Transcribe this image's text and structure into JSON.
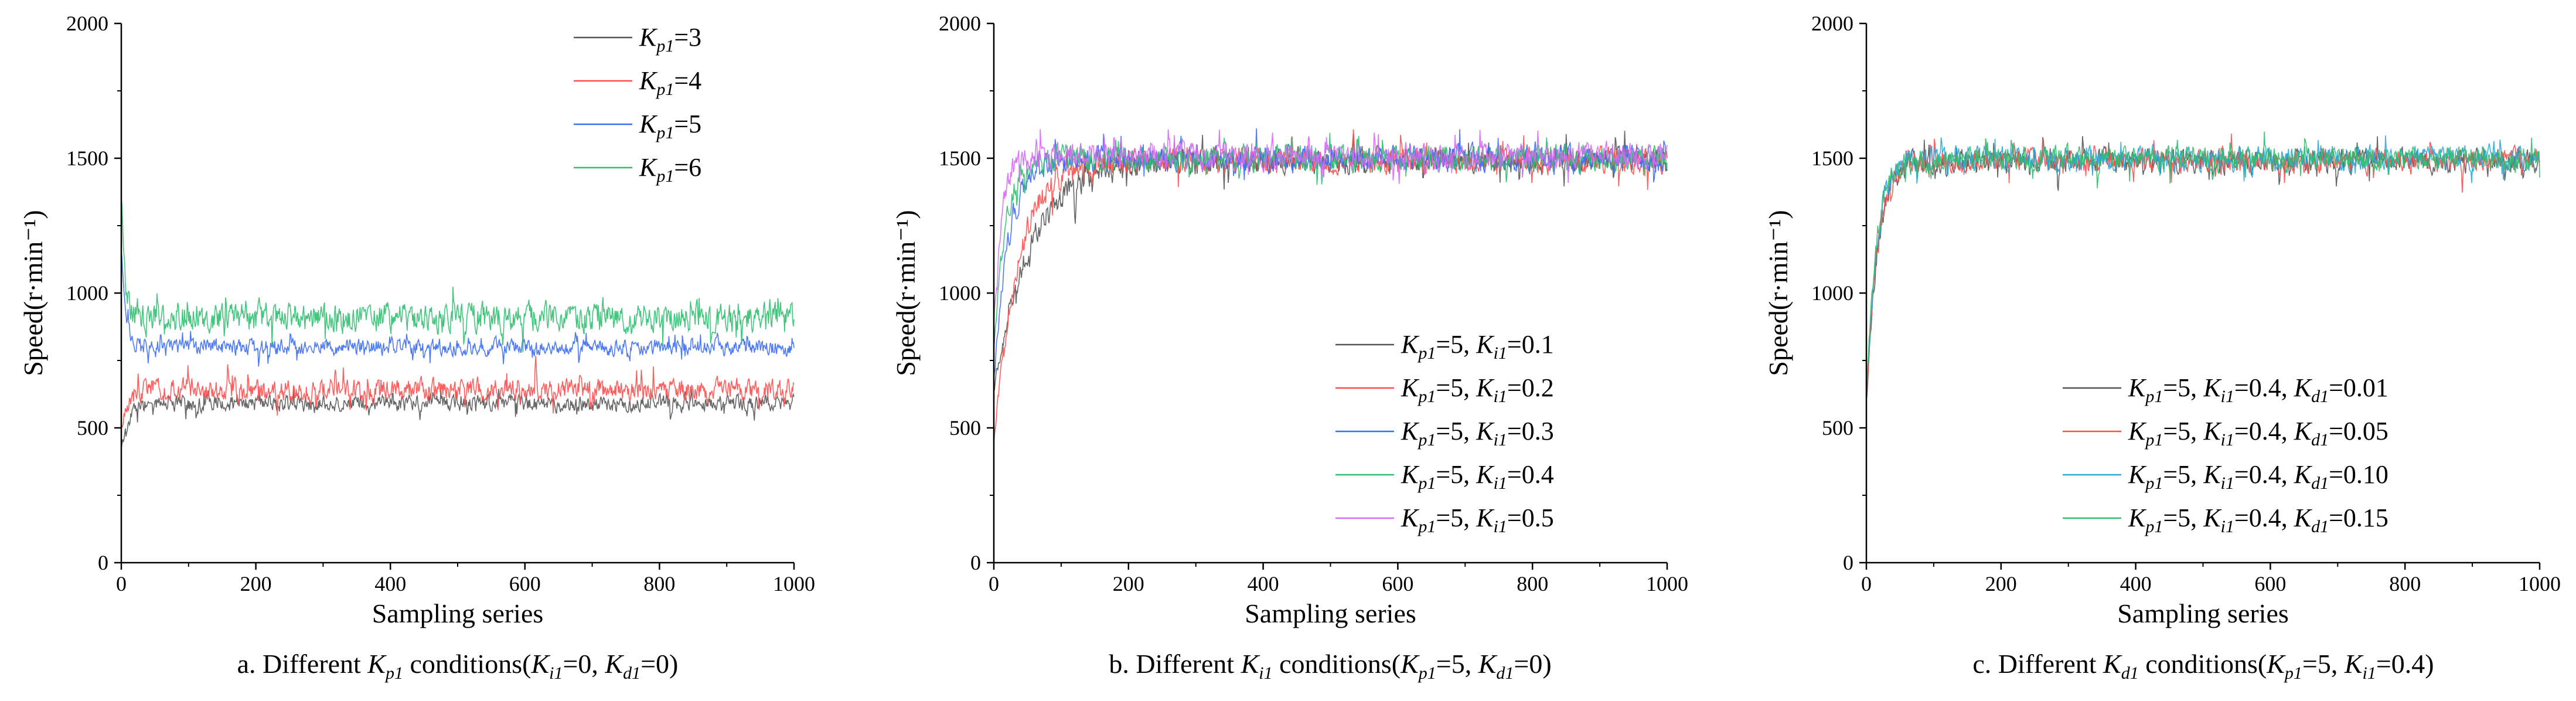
{
  "figure": {
    "panels": [
      {
        "id": "a",
        "caption": {
          "prefix": "a. Different ",
          "k": "K",
          "kSub": "p1",
          "mid": " conditions(",
          "p1": "K",
          "p1Sub": "i1",
          "p1Val": "=0, ",
          "p2": "K",
          "p2Sub": "d1",
          "p2Val": "=0)"
        },
        "legendPos": "top-right"
      },
      {
        "id": "b",
        "caption": {
          "prefix": "b. Different ",
          "k": "K",
          "kSub": "i1",
          "mid": " conditions(",
          "p1": "K",
          "p1Sub": "p1",
          "p1Val": "=5, ",
          "p2": "K",
          "p2Sub": "d1",
          "p2Val": "=0)"
        },
        "legendPos": "bottom-right"
      },
      {
        "id": "c",
        "caption": {
          "prefix": "c. Different ",
          "k": "K",
          "kSub": "d1",
          "mid": " conditions(",
          "p1": "K",
          "p1Sub": "p1",
          "p1Val": "=5, ",
          "p2": "K",
          "p2Sub": "i1",
          "p2Val": "=0.4)"
        },
        "legendPos": "bottom-right"
      }
    ]
  },
  "chart_data": [
    {
      "type": "line",
      "xlabel": "Sampling series",
      "ylabel": "Speed(r·min⁻¹)",
      "xlim": [
        0,
        1000
      ],
      "ylim": [
        0,
        2000
      ],
      "xticks": [
        "0",
        "200",
        "400",
        "600",
        "800",
        "1000"
      ],
      "yticks": [
        "0",
        "500",
        "1000",
        "1500",
        "2000"
      ],
      "series": [
        {
          "name": "Kp1=3",
          "legend": [
            [
              "K",
              "p1",
              "=3"
            ]
          ],
          "color": "#555555",
          "steady": 590,
          "noise": 45,
          "tau": 10,
          "overshoot": 0,
          "start": 420
        },
        {
          "name": "Kp1=4",
          "legend": [
            [
              "K",
              "p1",
              "=4"
            ]
          ],
          "color": "#ff4d4d",
          "steady": 640,
          "noise": 60,
          "tau": 8,
          "overshoot": 0,
          "start": 500
        },
        {
          "name": "Kp1=5",
          "legend": [
            [
              "K",
              "p1",
              "=5"
            ]
          ],
          "color": "#3b6cf5",
          "steady": 800,
          "noise": 45,
          "tau": 6,
          "overshoot": 120,
          "start": 1150
        },
        {
          "name": "Kp1=6",
          "legend": [
            [
              "K",
              "p1",
              "=6"
            ]
          ],
          "color": "#2fbf6f",
          "steady": 910,
          "noise": 80,
          "tau": 5,
          "overshoot": 200,
          "start": 1350
        }
      ]
    },
    {
      "type": "line",
      "xlabel": "Sampling series",
      "ylabel": "Speed(r·min⁻¹)",
      "xlim": [
        0,
        1000
      ],
      "ylim": [
        0,
        2000
      ],
      "xticks": [
        "0",
        "200",
        "400",
        "600",
        "800",
        "1000"
      ],
      "yticks": [
        "0",
        "500",
        "1000",
        "1500",
        "2000"
      ],
      "series": [
        {
          "name": "Kp1=5, Ki1=0.1",
          "legend": [
            [
              "K",
              "p1",
              "=5, "
            ],
            [
              "K",
              "i1",
              "=0.1"
            ]
          ],
          "color": "#555555",
          "steady": 1490,
          "noise": 70,
          "tau": 55,
          "overshoot": 0,
          "start": 650
        },
        {
          "name": "Kp1=5, Ki1=0.2",
          "legend": [
            [
              "K",
              "p1",
              "=5, "
            ],
            [
              "K",
              "i1",
              "=0.2"
            ]
          ],
          "color": "#ff4d4d",
          "steady": 1490,
          "noise": 70,
          "tau": 35,
          "overshoot": 0,
          "start": 450
        },
        {
          "name": "Kp1=5, Ki1=0.3",
          "legend": [
            [
              "K",
              "p1",
              "=5, "
            ],
            [
              "K",
              "i1",
              "=0.3"
            ]
          ],
          "color": "#3b6cf5",
          "steady": 1500,
          "noise": 70,
          "tau": 22,
          "overshoot": 0,
          "start": 700
        },
        {
          "name": "Kp1=5, Ki1=0.4",
          "legend": [
            [
              "K",
              "p1",
              "=5, "
            ],
            [
              "K",
              "i1",
              "=0.4"
            ]
          ],
          "color": "#2fbf6f",
          "steady": 1500,
          "noise": 70,
          "tau": 16,
          "overshoot": 0,
          "start": 800
        },
        {
          "name": "Kp1=5, Ki1=0.5",
          "legend": [
            [
              "K",
              "p1",
              "=5, "
            ],
            [
              "K",
              "i1",
              "=0.5"
            ]
          ],
          "color": "#d46bf5",
          "steady": 1510,
          "noise": 70,
          "tau": 12,
          "overshoot": 0,
          "start": 900
        }
      ]
    },
    {
      "type": "line",
      "xlabel": "Sampling series",
      "ylabel": "Speed(r·min⁻¹)",
      "xlim": [
        0,
        1000
      ],
      "ylim": [
        0,
        2000
      ],
      "xticks": [
        "0",
        "200",
        "400",
        "600",
        "800",
        "1000"
      ],
      "yticks": [
        "0",
        "500",
        "1000",
        "1500",
        "2000"
      ],
      "series": [
        {
          "name": "Kp1=5, Ki1=0.4, Kd1=0.01",
          "legend": [
            [
              "K",
              "p1",
              "=5, "
            ],
            [
              "K",
              "i1",
              "=0.4, "
            ],
            [
              "K",
              "d1",
              "=0.01"
            ]
          ],
          "color": "#555555",
          "steady": 1490,
          "noise": 65,
          "tau": 16,
          "overshoot": 0,
          "start": 600
        },
        {
          "name": "Kp1=5, Ki1=0.4, Kd1=0.05",
          "legend": [
            [
              "K",
              "p1",
              "=5, "
            ],
            [
              "K",
              "i1",
              "=0.4, "
            ],
            [
              "K",
              "d1",
              "=0.05"
            ]
          ],
          "color": "#ff4d4d",
          "steady": 1490,
          "noise": 65,
          "tau": 16,
          "overshoot": 0,
          "start": 620
        },
        {
          "name": "Kp1=5, Ki1=0.4, Kd1=0.10",
          "legend": [
            [
              "K",
              "p1",
              "=5, "
            ],
            [
              "K",
              "i1",
              "=0.4, "
            ],
            [
              "K",
              "d1",
              "=0.10"
            ]
          ],
          "color": "#2aa9d6",
          "steady": 1500,
          "noise": 65,
          "tau": 15,
          "overshoot": 0,
          "start": 640
        },
        {
          "name": "Kp1=5, Ki1=0.4, Kd1=0.15",
          "legend": [
            [
              "K",
              "p1",
              "=5, "
            ],
            [
              "K",
              "i1",
              "=0.4, "
            ],
            [
              "K",
              "d1",
              "=0.15"
            ]
          ],
          "color": "#2fbf6f",
          "steady": 1500,
          "noise": 65,
          "tau": 15,
          "overshoot": 0,
          "start": 660
        }
      ]
    }
  ]
}
